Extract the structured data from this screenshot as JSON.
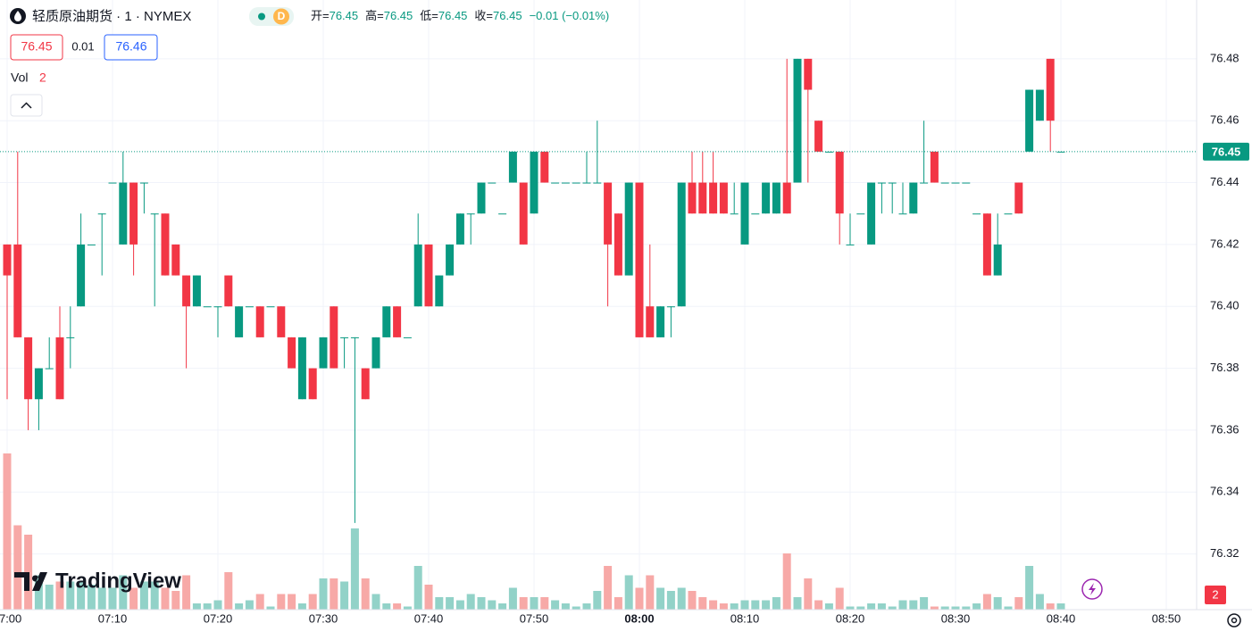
{
  "header": {
    "title": "轻质原油期货 · 1 · NYMEX",
    "badge": "D",
    "open_label": "开=",
    "high_label": "高=",
    "low_label": "低=",
    "close_label": "收=",
    "change": "−0.01 (−0.01%)"
  },
  "quote": {
    "bid": "76.45",
    "spread": "0.01",
    "ask": "76.46"
  },
  "vol_label": "Vol",
  "logo": "TradingView",
  "chart_data": {
    "type": "candlestick",
    "x": [
      "07:00",
      "07:01",
      "07:02",
      "07:03",
      "07:04",
      "07:05",
      "07:06",
      "07:07",
      "07:08",
      "07:09",
      "07:10",
      "07:11",
      "07:12",
      "07:13",
      "07:14",
      "07:15",
      "07:16",
      "07:17",
      "07:18",
      "07:19",
      "07:20",
      "07:21",
      "07:22",
      "07:23",
      "07:24",
      "07:25",
      "07:26",
      "07:27",
      "07:28",
      "07:29",
      "07:30",
      "07:31",
      "07:32",
      "07:33",
      "07:34",
      "07:35",
      "07:36",
      "07:37",
      "07:38",
      "07:39",
      "07:40",
      "07:41",
      "07:42",
      "07:43",
      "07:44",
      "07:45",
      "07:46",
      "07:47",
      "07:48",
      "07:49",
      "07:50",
      "07:51",
      "07:52",
      "07:53",
      "07:54",
      "07:55",
      "07:56",
      "07:57",
      "07:58",
      "07:59",
      "08:00",
      "08:01",
      "08:02",
      "08:03",
      "08:04",
      "08:05",
      "08:06",
      "08:07",
      "08:08",
      "08:09",
      "08:10",
      "08:11",
      "08:12",
      "08:13",
      "08:14",
      "08:15",
      "08:16",
      "08:17",
      "08:18",
      "08:19",
      "08:20",
      "08:21",
      "08:22",
      "08:23",
      "08:24",
      "08:25",
      "08:26",
      "08:27",
      "08:28",
      "08:29",
      "08:30",
      "08:31",
      "08:32",
      "08:33",
      "08:34",
      "08:35",
      "08:36",
      "08:37",
      "08:38",
      "08:39",
      "08:40"
    ],
    "open": [
      76.42,
      76.42,
      76.39,
      76.37,
      76.38,
      76.39,
      76.39,
      76.4,
      76.42,
      76.43,
      76.44,
      76.42,
      76.44,
      76.44,
      76.43,
      76.43,
      76.42,
      76.41,
      76.4,
      76.4,
      76.4,
      76.41,
      76.39,
      76.4,
      76.4,
      76.4,
      76.4,
      76.39,
      76.37,
      76.38,
      76.38,
      76.4,
      76.39,
      76.39,
      76.38,
      76.38,
      76.39,
      76.4,
      76.39,
      76.4,
      76.42,
      76.4,
      76.41,
      76.42,
      76.43,
      76.43,
      76.44,
      76.43,
      76.44,
      76.44,
      76.43,
      76.45,
      76.44,
      76.44,
      76.44,
      76.44,
      76.44,
      76.44,
      76.43,
      76.41,
      76.44,
      76.4,
      76.39,
      76.4,
      76.4,
      76.44,
      76.44,
      76.44,
      76.44,
      76.43,
      76.42,
      76.43,
      76.43,
      76.43,
      76.44,
      76.44,
      76.48,
      76.46,
      76.45,
      76.45,
      76.42,
      76.43,
      76.42,
      76.44,
      76.44,
      76.43,
      76.43,
      76.44,
      76.45,
      76.44,
      76.44,
      76.44,
      76.43,
      76.43,
      76.41,
      76.43,
      76.44,
      76.45,
      76.46,
      76.48,
      76.45
    ],
    "high": [
      76.42,
      76.45,
      76.39,
      76.38,
      76.39,
      76.4,
      76.4,
      76.43,
      76.42,
      76.43,
      76.44,
      76.45,
      76.44,
      76.44,
      76.43,
      76.43,
      76.42,
      76.41,
      76.41,
      76.4,
      76.4,
      76.41,
      76.4,
      76.4,
      76.4,
      76.4,
      76.4,
      76.39,
      76.39,
      76.38,
      76.39,
      76.4,
      76.39,
      76.39,
      76.38,
      76.39,
      76.4,
      76.4,
      76.39,
      76.43,
      76.42,
      76.41,
      76.42,
      76.43,
      76.43,
      76.44,
      76.44,
      76.43,
      76.45,
      76.44,
      76.45,
      76.45,
      76.44,
      76.44,
      76.44,
      76.45,
      76.46,
      76.44,
      76.43,
      76.44,
      76.44,
      76.42,
      76.4,
      76.4,
      76.44,
      76.45,
      76.45,
      76.45,
      76.44,
      76.44,
      76.44,
      76.43,
      76.44,
      76.44,
      76.48,
      76.48,
      76.48,
      76.46,
      76.45,
      76.45,
      76.43,
      76.43,
      76.44,
      76.44,
      76.44,
      76.44,
      76.44,
      76.46,
      76.45,
      76.44,
      76.44,
      76.44,
      76.43,
      76.43,
      76.43,
      76.43,
      76.44,
      76.47,
      76.47,
      76.48,
      76.45
    ],
    "low": [
      76.37,
      76.39,
      76.36,
      76.36,
      76.38,
      76.37,
      76.38,
      76.4,
      76.42,
      76.41,
      76.44,
      76.42,
      76.41,
      76.43,
      76.4,
      76.41,
      76.41,
      76.38,
      76.4,
      76.4,
      76.39,
      76.4,
      76.39,
      76.4,
      76.39,
      76.4,
      76.39,
      76.38,
      76.37,
      76.37,
      76.38,
      76.38,
      76.38,
      76.33,
      76.37,
      76.38,
      76.39,
      76.39,
      76.39,
      76.4,
      76.4,
      76.4,
      76.41,
      76.42,
      76.42,
      76.43,
      76.44,
      76.43,
      76.44,
      76.42,
      76.43,
      76.44,
      76.44,
      76.44,
      76.44,
      76.44,
      76.44,
      76.4,
      76.41,
      76.41,
      76.39,
      76.39,
      76.39,
      76.39,
      76.4,
      76.43,
      76.43,
      76.43,
      76.43,
      76.43,
      76.42,
      76.43,
      76.43,
      76.43,
      76.43,
      76.44,
      76.44,
      76.45,
      76.45,
      76.42,
      76.42,
      76.43,
      76.42,
      76.43,
      76.43,
      76.43,
      76.43,
      76.44,
      76.44,
      76.44,
      76.44,
      76.44,
      76.43,
      76.41,
      76.41,
      76.43,
      76.43,
      76.45,
      76.46,
      76.45,
      76.45
    ],
    "close": [
      76.41,
      76.39,
      76.37,
      76.38,
      76.38,
      76.37,
      76.39,
      76.42,
      76.42,
      76.43,
      76.44,
      76.44,
      76.42,
      76.44,
      76.43,
      76.41,
      76.41,
      76.4,
      76.41,
      76.4,
      76.4,
      76.4,
      76.4,
      76.4,
      76.39,
      76.4,
      76.39,
      76.38,
      76.39,
      76.37,
      76.39,
      76.38,
      76.39,
      76.39,
      76.37,
      76.39,
      76.4,
      76.39,
      76.39,
      76.42,
      76.4,
      76.41,
      76.42,
      76.43,
      76.43,
      76.44,
      76.44,
      76.43,
      76.45,
      76.42,
      76.45,
      76.44,
      76.44,
      76.44,
      76.44,
      76.44,
      76.44,
      76.42,
      76.41,
      76.44,
      76.39,
      76.39,
      76.4,
      76.4,
      76.44,
      76.43,
      76.43,
      76.43,
      76.43,
      76.43,
      76.44,
      76.43,
      76.44,
      76.44,
      76.43,
      76.48,
      76.47,
      76.45,
      76.45,
      76.43,
      76.42,
      76.43,
      76.44,
      76.44,
      76.44,
      76.43,
      76.44,
      76.44,
      76.44,
      76.44,
      76.44,
      76.44,
      76.43,
      76.41,
      76.42,
      76.43,
      76.43,
      76.47,
      76.47,
      76.46,
      76.45
    ],
    "volume": [
      50,
      27,
      24,
      11,
      8,
      9,
      9,
      9,
      8,
      7,
      7,
      11,
      7,
      9,
      9,
      7,
      6,
      11,
      2,
      2,
      3,
      12,
      2,
      3,
      5,
      1,
      5,
      5,
      2,
      5,
      10,
      10,
      9,
      26,
      10,
      5,
      2,
      2,
      1,
      14,
      8,
      4,
      4,
      3,
      5,
      4,
      3,
      2,
      7,
      4,
      4,
      4,
      3,
      2,
      1,
      2,
      6,
      14,
      4,
      11,
      7,
      11,
      7,
      6,
      7,
      6,
      4,
      3,
      2,
      2,
      3,
      3,
      3,
      4,
      18,
      4,
      10,
      3,
      2,
      7,
      1,
      1,
      2,
      2,
      1,
      3,
      3,
      4,
      1,
      1,
      1,
      1,
      2,
      5,
      4,
      1,
      4,
      14,
      5,
      2,
      2
    ],
    "up_color": "#089981",
    "down_color": "#f23645",
    "up_volume_color": "#92d2c8",
    "down_volume_color": "#f7a9a7",
    "last_price": 76.45,
    "ylim": [
      76.302,
      76.499
    ],
    "yticks": [
      76.32,
      76.34,
      76.36,
      76.38,
      {
        "value": 76.4,
        "label": "76.40"
      },
      76.42,
      76.44,
      76.46,
      76.48
    ],
    "xticks": [
      "07:00",
      "07:10",
      "07:20",
      "07:30",
      "07:40",
      "07:50",
      "08:00",
      "08:10",
      "08:20",
      "08:30",
      "08:40",
      "08:50"
    ],
    "grid": true
  }
}
